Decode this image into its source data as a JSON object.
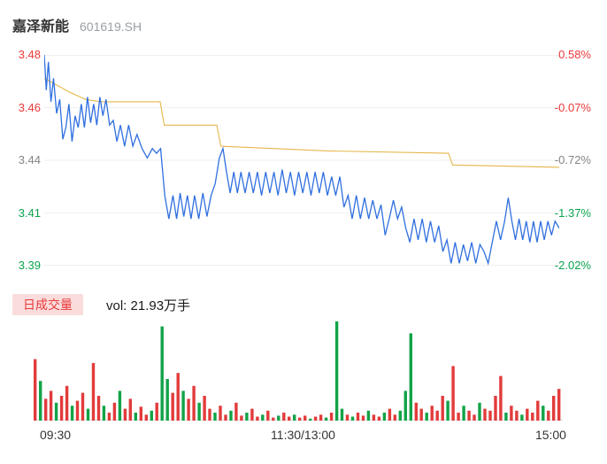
{
  "header": {
    "title": "嘉泽新能",
    "code": "601619.SH"
  },
  "colors": {
    "up": "#e8393a",
    "down": "#0ba24d",
    "neutral": "#848484",
    "price_line": "#2f6fdf",
    "avg_line": "#e5b64a",
    "vol_up": "#e23b3b",
    "vol_down": "#12a347",
    "badge_bg": "#fbdcdc",
    "grid": "#efefef"
  },
  "volume_header": {
    "badge": "日成交量",
    "vol_text": "vol: 21.93万手"
  },
  "chart_data": {
    "type": "line",
    "title": "嘉泽新能 601619.SH 分时走势",
    "price_range": [
      3.39,
      3.48
    ],
    "x_labels": [
      "09:30",
      "11:30/13:00",
      "15:00"
    ],
    "y_axis_left": [
      {
        "text": "3.48",
        "tone": "up"
      },
      {
        "text": "3.46",
        "tone": "up"
      },
      {
        "text": "3.44",
        "tone": "neutral"
      },
      {
        "text": "3.41",
        "tone": "down"
      },
      {
        "text": "3.39",
        "tone": "down"
      }
    ],
    "y_axis_right": [
      {
        "text": "0.58%",
        "tone": "up"
      },
      {
        "text": "-0.07%",
        "tone": "up"
      },
      {
        "text": "-0.72%",
        "tone": "neutral"
      },
      {
        "text": "-1.37%",
        "tone": "down"
      },
      {
        "text": "-2.02%",
        "tone": "down"
      }
    ],
    "volume_label": "vol: 21.93万手",
    "series": [
      {
        "name": "avg",
        "color_key": "avg_line",
        "points": [
          [
            0.0,
            3.47
          ],
          [
            0.025,
            3.467
          ],
          [
            0.05,
            3.464
          ],
          [
            0.08,
            3.461
          ],
          [
            0.11,
            3.46
          ],
          [
            0.225,
            3.46
          ],
          [
            0.233,
            3.45
          ],
          [
            0.335,
            3.45
          ],
          [
            0.343,
            3.441
          ],
          [
            0.55,
            3.439
          ],
          [
            0.785,
            3.438
          ],
          [
            0.793,
            3.433
          ],
          [
            1.0,
            3.432
          ]
        ]
      },
      {
        "name": "price",
        "color_key": "price_line",
        "points": [
          [
            0.0,
            3.48
          ],
          [
            0.004,
            3.465
          ],
          [
            0.008,
            3.477
          ],
          [
            0.013,
            3.46
          ],
          [
            0.018,
            3.47
          ],
          [
            0.024,
            3.455
          ],
          [
            0.03,
            3.461
          ],
          [
            0.036,
            3.444
          ],
          [
            0.042,
            3.449
          ],
          [
            0.048,
            3.459
          ],
          [
            0.054,
            3.443
          ],
          [
            0.06,
            3.454
          ],
          [
            0.066,
            3.449
          ],
          [
            0.072,
            3.459
          ],
          [
            0.078,
            3.449
          ],
          [
            0.084,
            3.462
          ],
          [
            0.09,
            3.451
          ],
          [
            0.096,
            3.459
          ],
          [
            0.102,
            3.45
          ],
          [
            0.108,
            3.462
          ],
          [
            0.114,
            3.454
          ],
          [
            0.12,
            3.461
          ],
          [
            0.127,
            3.45
          ],
          [
            0.134,
            3.452
          ],
          [
            0.141,
            3.443
          ],
          [
            0.148,
            3.45
          ],
          [
            0.156,
            3.441
          ],
          [
            0.164,
            3.45
          ],
          [
            0.172,
            3.441
          ],
          [
            0.18,
            3.446
          ],
          [
            0.19,
            3.44
          ],
          [
            0.2,
            3.436
          ],
          [
            0.21,
            3.44
          ],
          [
            0.218,
            3.438
          ],
          [
            0.226,
            3.44
          ],
          [
            0.234,
            3.42
          ],
          [
            0.242,
            3.41
          ],
          [
            0.25,
            3.42
          ],
          [
            0.257,
            3.41
          ],
          [
            0.264,
            3.421
          ],
          [
            0.271,
            3.411
          ],
          [
            0.278,
            3.42
          ],
          [
            0.285,
            3.41
          ],
          [
            0.292,
            3.42
          ],
          [
            0.3,
            3.41
          ],
          [
            0.308,
            3.421
          ],
          [
            0.316,
            3.411
          ],
          [
            0.324,
            3.42
          ],
          [
            0.332,
            3.425
          ],
          [
            0.34,
            3.436
          ],
          [
            0.347,
            3.44
          ],
          [
            0.354,
            3.43
          ],
          [
            0.361,
            3.421
          ],
          [
            0.368,
            3.43
          ],
          [
            0.375,
            3.421
          ],
          [
            0.382,
            3.43
          ],
          [
            0.39,
            3.421
          ],
          [
            0.398,
            3.43
          ],
          [
            0.406,
            3.421
          ],
          [
            0.414,
            3.43
          ],
          [
            0.422,
            3.42
          ],
          [
            0.43,
            3.43
          ],
          [
            0.438,
            3.421
          ],
          [
            0.446,
            3.43
          ],
          [
            0.454,
            3.42
          ],
          [
            0.462,
            3.431
          ],
          [
            0.47,
            3.421
          ],
          [
            0.478,
            3.43
          ],
          [
            0.486,
            3.42
          ],
          [
            0.494,
            3.43
          ],
          [
            0.502,
            3.421
          ],
          [
            0.51,
            3.43
          ],
          [
            0.518,
            3.42
          ],
          [
            0.526,
            3.43
          ],
          [
            0.534,
            3.421
          ],
          [
            0.542,
            3.43
          ],
          [
            0.55,
            3.42
          ],
          [
            0.558,
            3.428
          ],
          [
            0.566,
            3.42
          ],
          [
            0.574,
            3.428
          ],
          [
            0.582,
            3.415
          ],
          [
            0.59,
            3.42
          ],
          [
            0.598,
            3.41
          ],
          [
            0.606,
            3.42
          ],
          [
            0.614,
            3.41
          ],
          [
            0.622,
            3.419
          ],
          [
            0.63,
            3.41
          ],
          [
            0.638,
            3.418
          ],
          [
            0.646,
            3.41
          ],
          [
            0.654,
            3.416
          ],
          [
            0.662,
            3.403
          ],
          [
            0.67,
            3.41
          ],
          [
            0.678,
            3.418
          ],
          [
            0.686,
            3.41
          ],
          [
            0.694,
            3.415
          ],
          [
            0.702,
            3.406
          ],
          [
            0.71,
            3.4
          ],
          [
            0.718,
            3.41
          ],
          [
            0.726,
            3.401
          ],
          [
            0.734,
            3.41
          ],
          [
            0.742,
            3.4
          ],
          [
            0.75,
            3.409
          ],
          [
            0.758,
            3.4
          ],
          [
            0.766,
            3.407
          ],
          [
            0.774,
            3.396
          ],
          [
            0.782,
            3.401
          ],
          [
            0.79,
            3.391
          ],
          [
            0.798,
            3.4
          ],
          [
            0.806,
            3.391
          ],
          [
            0.814,
            3.399
          ],
          [
            0.822,
            3.392
          ],
          [
            0.83,
            3.4
          ],
          [
            0.838,
            3.391
          ],
          [
            0.846,
            3.399
          ],
          [
            0.854,
            3.396
          ],
          [
            0.862,
            3.391
          ],
          [
            0.87,
            3.4
          ],
          [
            0.878,
            3.409
          ],
          [
            0.886,
            3.401
          ],
          [
            0.894,
            3.409
          ],
          [
            0.901,
            3.419
          ],
          [
            0.908,
            3.409
          ],
          [
            0.915,
            3.401
          ],
          [
            0.922,
            3.41
          ],
          [
            0.929,
            3.401
          ],
          [
            0.936,
            3.409
          ],
          [
            0.943,
            3.4
          ],
          [
            0.95,
            3.409
          ],
          [
            0.957,
            3.4
          ],
          [
            0.964,
            3.409
          ],
          [
            0.971,
            3.401
          ],
          [
            0.978,
            3.409
          ],
          [
            0.985,
            3.403
          ],
          [
            0.992,
            3.409
          ],
          [
            1.0,
            3.406
          ]
        ]
      }
    ],
    "volume": {
      "bars": [
        [
          62,
          "r"
        ],
        [
          40,
          "g"
        ],
        [
          22,
          "r"
        ],
        [
          30,
          "r"
        ],
        [
          18,
          "g"
        ],
        [
          25,
          "r"
        ],
        [
          35,
          "r"
        ],
        [
          15,
          "g"
        ],
        [
          20,
          "r"
        ],
        [
          28,
          "r"
        ],
        [
          12,
          "g"
        ],
        [
          58,
          "r"
        ],
        [
          25,
          "r"
        ],
        [
          15,
          "g"
        ],
        [
          8,
          "r"
        ],
        [
          18,
          "r"
        ],
        [
          30,
          "g"
        ],
        [
          12,
          "r"
        ],
        [
          22,
          "r"
        ],
        [
          8,
          "g"
        ],
        [
          14,
          "r"
        ],
        [
          6,
          "r"
        ],
        [
          10,
          "g"
        ],
        [
          18,
          "r"
        ],
        [
          95,
          "g"
        ],
        [
          42,
          "g"
        ],
        [
          28,
          "r"
        ],
        [
          48,
          "r"
        ],
        [
          30,
          "g"
        ],
        [
          22,
          "r"
        ],
        [
          35,
          "r"
        ],
        [
          18,
          "g"
        ],
        [
          25,
          "r"
        ],
        [
          12,
          "r"
        ],
        [
          8,
          "g"
        ],
        [
          15,
          "r"
        ],
        [
          6,
          "r"
        ],
        [
          10,
          "g"
        ],
        [
          18,
          "r"
        ],
        [
          5,
          "r"
        ],
        [
          8,
          "g"
        ],
        [
          12,
          "r"
        ],
        [
          4,
          "r"
        ],
        [
          6,
          "g"
        ],
        [
          10,
          "r"
        ],
        [
          3,
          "r"
        ],
        [
          5,
          "g"
        ],
        [
          8,
          "r"
        ],
        [
          4,
          "r"
        ],
        [
          6,
          "g"
        ],
        [
          3,
          "r"
        ],
        [
          5,
          "r"
        ],
        [
          2,
          "g"
        ],
        [
          4,
          "r"
        ],
        [
          6,
          "r"
        ],
        [
          3,
          "g"
        ],
        [
          8,
          "r"
        ],
        [
          100,
          "g"
        ],
        [
          12,
          "g"
        ],
        [
          6,
          "r"
        ],
        [
          4,
          "g"
        ],
        [
          8,
          "r"
        ],
        [
          5,
          "r"
        ],
        [
          10,
          "g"
        ],
        [
          6,
          "r"
        ],
        [
          4,
          "r"
        ],
        [
          8,
          "g"
        ],
        [
          12,
          "r"
        ],
        [
          6,
          "r"
        ],
        [
          10,
          "g"
        ],
        [
          30,
          "g"
        ],
        [
          88,
          "g"
        ],
        [
          18,
          "r"
        ],
        [
          12,
          "r"
        ],
        [
          8,
          "g"
        ],
        [
          15,
          "r"
        ],
        [
          10,
          "r"
        ],
        [
          25,
          "r"
        ],
        [
          20,
          "g"
        ],
        [
          55,
          "r"
        ],
        [
          8,
          "r"
        ],
        [
          15,
          "g"
        ],
        [
          10,
          "r"
        ],
        [
          6,
          "r"
        ],
        [
          18,
          "g"
        ],
        [
          12,
          "r"
        ],
        [
          10,
          "r"
        ],
        [
          25,
          "r"
        ],
        [
          45,
          "r"
        ],
        [
          8,
          "g"
        ],
        [
          15,
          "r"
        ],
        [
          10,
          "r"
        ],
        [
          6,
          "g"
        ],
        [
          12,
          "r"
        ],
        [
          8,
          "r"
        ],
        [
          20,
          "r"
        ],
        [
          15,
          "g"
        ],
        [
          10,
          "r"
        ],
        [
          25,
          "r"
        ],
        [
          32,
          "r"
        ]
      ]
    }
  }
}
